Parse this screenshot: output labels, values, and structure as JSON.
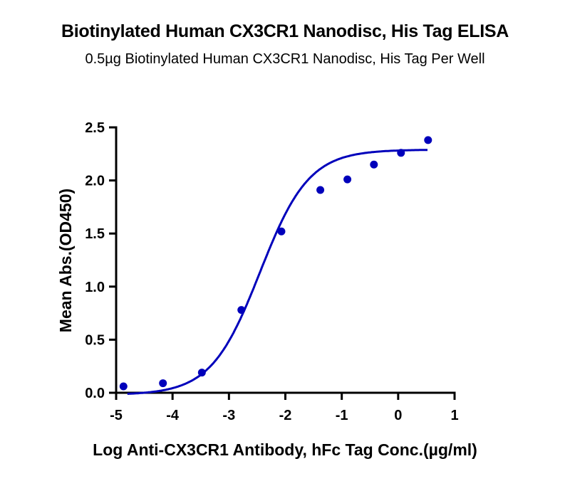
{
  "chart_data": {
    "type": "scatter",
    "title": "Biotinylated Human CX3CR1 Nanodisc, His Tag ELISA",
    "subtitle": "0.5µg Biotinylated Human CX3CR1 Nanodisc, His Tag Per Well",
    "xlabel": "Log Anti-CX3CR1 Antibody, hFc Tag Conc.(µg/ml)",
    "ylabel": "Mean Abs.(OD450)",
    "xlim": [
      -5,
      1
    ],
    "ylim": [
      0,
      2.5
    ],
    "xticks": [
      "-5",
      "-4",
      "-3",
      "-2",
      "-1",
      "0",
      "1"
    ],
    "yticks": [
      "0.0",
      "0.5",
      "1.0",
      "1.5",
      "2.0",
      "2.5"
    ],
    "grid": false,
    "legend": null,
    "series": [
      {
        "name": "Mean Abs.(OD450)",
        "color": "#0000BB",
        "x": [
          -4.87,
          -4.17,
          -3.48,
          -2.78,
          -2.07,
          -1.38,
          -0.9,
          -0.43,
          0.05,
          0.53
        ],
        "y": [
          0.06,
          0.09,
          0.19,
          0.78,
          1.52,
          1.91,
          2.01,
          2.15,
          2.26,
          2.38
        ],
        "fit": "4PL sigmoid curve"
      }
    ]
  }
}
